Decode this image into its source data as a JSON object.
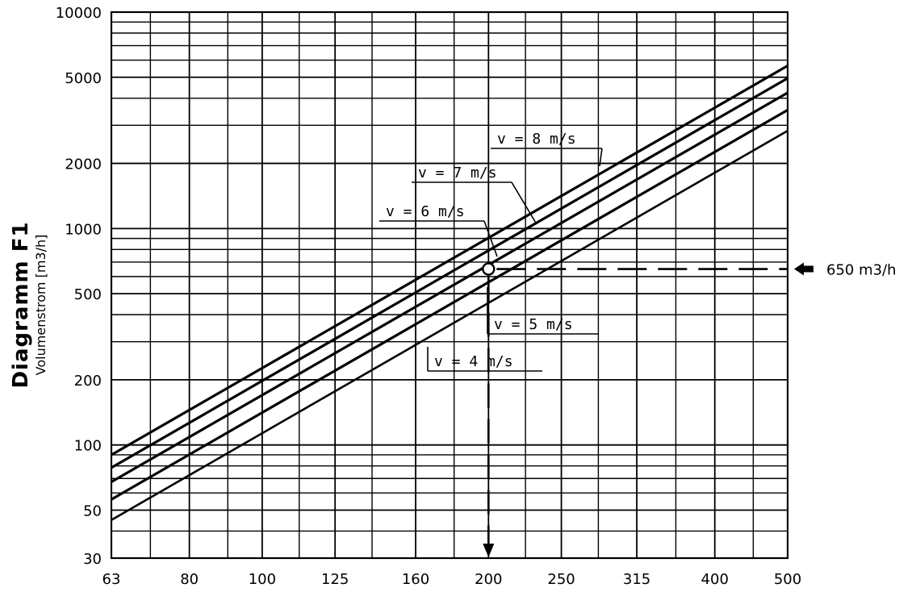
{
  "chart_data": {
    "type": "line",
    "title": "Diagramm F1",
    "ylabel": "Volumenstrom [m3/h]",
    "xlabel": "",
    "x_scale": "log",
    "y_scale": "log",
    "xlim": [
      63,
      500
    ],
    "ylim": [
      30,
      10000
    ],
    "grid": true,
    "x_ticks": [
      "63",
      "80",
      "100",
      "125",
      "160",
      "200",
      "250",
      "315",
      "400",
      "500"
    ],
    "y_ticks": [
      "10000",
      "5000",
      "2000",
      "1000",
      "500",
      "200",
      "100",
      "50",
      "30"
    ],
    "series": [
      {
        "name": "v = 8 m/s",
        "x": [
          63,
          500
        ],
        "y": [
          90,
          5650
        ]
      },
      {
        "name": "v = 7 m/s",
        "x": [
          63,
          500
        ],
        "y": [
          78.5,
          4950
        ]
      },
      {
        "name": "v = 6 m/s",
        "x": [
          63,
          500
        ],
        "y": [
          67.5,
          4240
        ]
      },
      {
        "name": "v = 5 m/s",
        "x": [
          63,
          500
        ],
        "y": [
          56,
          3530
        ]
      },
      {
        "name": "v = 4 m/s",
        "x": [
          63,
          500
        ],
        "y": [
          45,
          2830
        ]
      }
    ],
    "annotations": {
      "marked_point": {
        "x": 200,
        "y": 650
      },
      "flow_label": "650 m3/h",
      "flow_value": 650,
      "diameter_value": 200
    }
  }
}
